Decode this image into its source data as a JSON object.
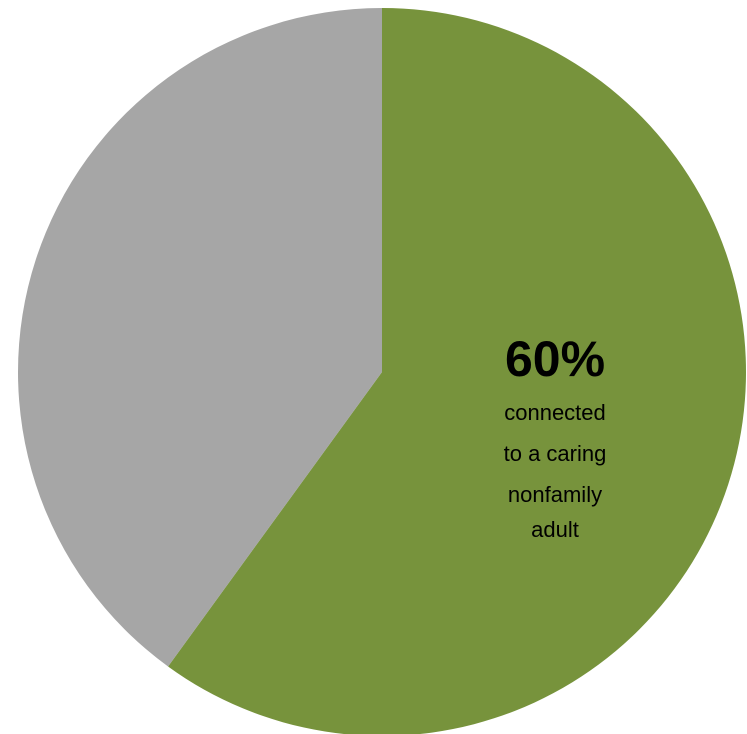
{
  "chart_data": {
    "type": "pie",
    "title": "",
    "start_angle_deg": 0,
    "direction": "clockwise",
    "slices": [
      {
        "label": "connected to a caring nonfamily adult",
        "value": 60,
        "color": "#77933C",
        "annotation": {
          "value_text": "60%",
          "text_lines": [
            "connected",
            "to a caring",
            "nonfamily",
            "adult"
          ]
        }
      },
      {
        "label": "",
        "value": 40,
        "color": "#A6A6A6"
      }
    ]
  }
}
